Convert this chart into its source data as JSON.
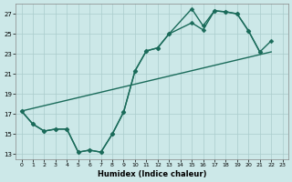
{
  "xlabel": "Humidex (Indice chaleur)",
  "bg_color": "#cce8e8",
  "grid_color": "#aacccc",
  "line_color": "#1a6b5a",
  "markersize": 2.5,
  "linewidth": 1.0,
  "xlim": [
    -0.5,
    23.5
  ],
  "ylim": [
    12.5,
    28.0
  ],
  "xticks": [
    0,
    1,
    2,
    3,
    4,
    5,
    6,
    7,
    8,
    9,
    10,
    11,
    12,
    13,
    14,
    15,
    16,
    17,
    18,
    19,
    20,
    21,
    22,
    23
  ],
  "yticks": [
    13,
    15,
    17,
    19,
    21,
    23,
    25,
    27
  ],
  "series1": {
    "x": [
      0,
      1,
      2,
      3,
      4,
      5,
      6,
      7,
      8,
      9,
      10,
      11,
      12,
      13,
      15,
      16,
      17,
      18,
      19,
      20,
      21,
      22
    ],
    "y": [
      17.3,
      16.0,
      15.3,
      15.5,
      15.5,
      13.2,
      13.4,
      13.2,
      15.0,
      17.2,
      21.3,
      23.3,
      23.6,
      25.0,
      26.1,
      25.4,
      27.3,
      27.2,
      27.0,
      25.3,
      23.2,
      24.3
    ]
  },
  "series2": {
    "x": [
      0,
      1,
      2,
      3,
      4,
      5,
      6,
      7,
      8,
      9,
      10,
      11,
      12,
      13,
      15,
      16,
      17,
      18,
      19,
      20,
      21
    ],
    "y": [
      17.3,
      16.0,
      15.3,
      15.5,
      15.5,
      13.2,
      13.4,
      13.2,
      15.0,
      17.2,
      21.3,
      23.3,
      23.6,
      25.0,
      27.5,
      25.8,
      27.3,
      27.2,
      27.0,
      25.3,
      23.2
    ]
  },
  "series3": {
    "x": [
      0,
      22
    ],
    "y": [
      17.3,
      23.2
    ]
  }
}
